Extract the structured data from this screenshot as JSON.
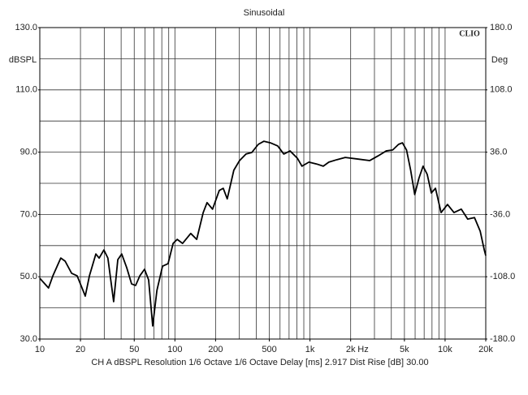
{
  "chart_data": {
    "type": "line",
    "title": "Sinusoidal",
    "brand": "CLIO",
    "ylabel": "dBSPL",
    "y2label": "Deg",
    "xunit": "Hz",
    "footer": "CH A   dBSPL   Resolution 1/6 Octave   1/6 Octave   Delay [ms] 2.917   Dist Rise [dB] 30.00",
    "xscale": "log",
    "grid": true,
    "color": "#000000",
    "xlim": [
      10,
      20000
    ],
    "xticks": [
      10,
      20,
      50,
      100,
      200,
      500,
      {
        "value": 1000,
        "label": "1k"
      },
      {
        "value": 2000,
        "label": "2k"
      },
      {
        "value": 5000,
        "label": "5k"
      },
      {
        "value": 10000,
        "label": "10k"
      },
      {
        "value": 20000,
        "label": "20k"
      }
    ],
    "ylim": [
      30,
      130
    ],
    "yticks": [
      {
        "value": 130,
        "label": "130.0"
      },
      {
        "value": 110,
        "label": "110.0"
      },
      {
        "value": 90,
        "label": "90.0"
      },
      {
        "value": 70,
        "label": "70.0"
      },
      {
        "value": 50,
        "label": "50.0"
      },
      {
        "value": 30,
        "label": "30.0"
      }
    ],
    "y2lim": [
      -180,
      180
    ],
    "y2ticks": [
      {
        "value": 180,
        "label": "180.0"
      },
      {
        "value": 108,
        "label": "108.0"
      },
      {
        "value": 36,
        "label": "36.0"
      },
      {
        "value": -36,
        "label": "-36.0"
      },
      {
        "value": -108,
        "label": "-108.0"
      },
      {
        "value": -180,
        "label": "-180.0"
      }
    ],
    "x": [
      10,
      11.6,
      12.5,
      14.3,
      15.4,
      17.2,
      18.9,
      21.7,
      23.3,
      26,
      27.5,
      29.8,
      31.9,
      35.2,
      37.8,
      40.4,
      44,
      47.8,
      51.2,
      55,
      59.6,
      63.9,
      68.5,
      73.6,
      81,
      89,
      97,
      104,
      114,
      131,
      145,
      162,
      173,
      190,
      213,
      228,
      244,
      273,
      301,
      336,
      371,
      414,
      455,
      509,
      577,
      640,
      712,
      808,
      872,
      982,
      1120,
      1254,
      1379,
      1585,
      1824,
      2253,
      2770,
      3190,
      3667,
      4095,
      4522,
      4830,
      5183,
      5560,
      5960,
      6400,
      6870,
      7370,
      7910,
      8490,
      9340,
      10420,
      11640,
      13180,
      14700,
      16500,
      18200,
      19500,
      20000
    ],
    "values": [
      49.5,
      46.4,
      50.3,
      56,
      55,
      51.1,
      50.3,
      43.8,
      50.3,
      57.3,
      56,
      58.6,
      56,
      42,
      55.5,
      57.3,
      52.9,
      47.7,
      47.2,
      50.3,
      52.4,
      49,
      34.2,
      45.6,
      53.4,
      54.2,
      60.7,
      62,
      60.7,
      63.9,
      62,
      70.6,
      73.8,
      71.7,
      77.7,
      78.4,
      75,
      84.2,
      87.3,
      89.4,
      89.9,
      92.5,
      93.5,
      93,
      92,
      89.4,
      90.4,
      88,
      85.5,
      86.8,
      86.2,
      85.5,
      86.8,
      87.6,
      88.3,
      87.8,
      87.3,
      88.8,
      90.4,
      90.7,
      92.5,
      93,
      90.7,
      84.2,
      76.4,
      81.6,
      85.5,
      82.9,
      76.9,
      78.4,
      70.6,
      73.2,
      70.6,
      71.7,
      68.5,
      69,
      64.6,
      58.6,
      56.8
    ]
  }
}
